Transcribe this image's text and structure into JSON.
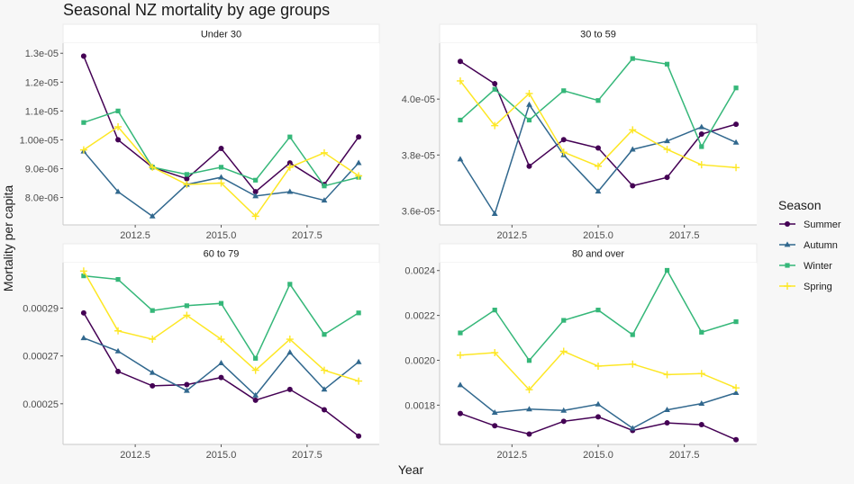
{
  "title": "Seasonal NZ mortality by age groups",
  "xlabel": "Year",
  "ylabel": "Mortality per capita",
  "legend": {
    "title": "Season",
    "items": [
      {
        "name": "Summer",
        "color": "#440154",
        "shape": "circle"
      },
      {
        "name": "Autumn",
        "color": "#31688e",
        "shape": "triangle"
      },
      {
        "name": "Winter",
        "color": "#35b779",
        "shape": "square"
      },
      {
        "name": "Spring",
        "color": "#fde725",
        "shape": "plus"
      }
    ]
  },
  "chart_data": [
    {
      "type": "line",
      "panel": "Under 30",
      "x": [
        2011,
        2012,
        2013,
        2014,
        2015,
        2016,
        2017,
        2018,
        2019
      ],
      "xlim": [
        2010.4,
        2019.6
      ],
      "xticks": [
        2012.5,
        2015.0,
        2017.5
      ],
      "xtick_labels": [
        "2012.5",
        "2015.0",
        "2017.5"
      ],
      "ylim": [
        7.05e-06,
        1.335e-05
      ],
      "yticks": [
        8e-06,
        9e-06,
        1e-05,
        1.1e-05,
        1.2e-05,
        1.3e-05
      ],
      "ytick_labels": [
        "8.0e-06",
        "9.0e-06",
        "1.00e-05",
        "1.1e-05",
        "1.2e-05",
        "1.3e-05"
      ],
      "series": [
        {
          "name": "Summer",
          "values": [
            1.29e-05,
            1e-05,
            9.05e-06,
            8.65e-06,
            9.7e-06,
            8.2e-06,
            9.2e-06,
            8.45e-06,
            1.01e-05
          ]
        },
        {
          "name": "Autumn",
          "values": [
            9.6e-06,
            8.2e-06,
            7.35e-06,
            8.45e-06,
            8.7e-06,
            8.05e-06,
            8.2e-06,
            7.9e-06,
            9.2e-06
          ]
        },
        {
          "name": "Winter",
          "values": [
            1.06e-05,
            1.1e-05,
            9.05e-06,
            8.8e-06,
            9.05e-06,
            8.6e-06,
            1.01e-05,
            8.4e-06,
            8.7e-06
          ]
        },
        {
          "name": "Spring",
          "values": [
            9.65e-06,
            1.045e-05,
            9.05e-06,
            8.45e-06,
            8.5e-06,
            7.35e-06,
            9.05e-06,
            9.55e-06,
            8.75e-06
          ]
        }
      ]
    },
    {
      "type": "line",
      "panel": "30 to 59",
      "x": [
        2011,
        2012,
        2013,
        2014,
        2015,
        2016,
        2017,
        2018,
        2019
      ],
      "xlim": [
        2010.4,
        2019.6
      ],
      "xticks": [
        2012.5,
        2015.0,
        2017.5
      ],
      "xtick_labels": [
        "2012.5",
        "2015.0",
        "2017.5"
      ],
      "ylim": [
        3.55e-05,
        4.2e-05
      ],
      "yticks": [
        3.6e-05,
        3.8e-05,
        4e-05
      ],
      "ytick_labels": [
        "3.6e-05",
        "3.8e-05",
        "4.0e-05"
      ],
      "series": [
        {
          "name": "Summer",
          "values": [
            4.135e-05,
            4.055e-05,
            3.76e-05,
            3.855e-05,
            3.825e-05,
            3.69e-05,
            3.72e-05,
            3.875e-05,
            3.91e-05
          ]
        },
        {
          "name": "Autumn",
          "values": [
            3.785e-05,
            3.59e-05,
            3.98e-05,
            3.8e-05,
            3.67e-05,
            3.82e-05,
            3.85e-05,
            3.9e-05,
            3.845e-05
          ]
        },
        {
          "name": "Winter",
          "values": [
            3.925e-05,
            4.035e-05,
            3.925e-05,
            4.03e-05,
            3.995e-05,
            4.145e-05,
            4.125e-05,
            3.83e-05,
            4.04e-05
          ]
        },
        {
          "name": "Spring",
          "values": [
            4.065e-05,
            3.905e-05,
            4.02e-05,
            3.81e-05,
            3.76e-05,
            3.89e-05,
            3.82e-05,
            3.765e-05,
            3.755e-05
          ]
        }
      ]
    },
    {
      "type": "line",
      "panel": "60 to 79",
      "x": [
        2011,
        2012,
        2013,
        2014,
        2015,
        2016,
        2017,
        2018,
        2019
      ],
      "xlim": [
        2010.4,
        2019.6
      ],
      "xticks": [
        2012.5,
        2015.0,
        2017.5
      ],
      "xtick_labels": [
        "2012.5",
        "2015.0",
        "2017.5"
      ],
      "ylim": [
        0.000233,
        0.000309
      ],
      "yticks": [
        0.00025,
        0.00027,
        0.00029
      ],
      "ytick_labels": [
        "0.00025",
        "0.00027",
        "0.00029"
      ],
      "series": [
        {
          "name": "Summer",
          "values": [
            0.000288,
            0.0002635,
            0.0002575,
            0.000258,
            0.000261,
            0.0002515,
            0.000256,
            0.0002475,
            0.0002365
          ]
        },
        {
          "name": "Autumn",
          "values": [
            0.0002775,
            0.000272,
            0.000263,
            0.0002555,
            0.000267,
            0.0002535,
            0.0002715,
            0.000256,
            0.0002675
          ]
        },
        {
          "name": "Winter",
          "values": [
            0.0003035,
            0.000302,
            0.000289,
            0.000291,
            0.000292,
            0.000269,
            0.0003,
            0.000279,
            0.000288
          ]
        },
        {
          "name": "Spring",
          "values": [
            0.0003055,
            0.0002805,
            0.000277,
            0.000287,
            0.000277,
            0.000264,
            0.000277,
            0.000264,
            0.0002595
          ]
        }
      ]
    },
    {
      "type": "line",
      "panel": "80 and over",
      "x": [
        2011,
        2012,
        2013,
        2014,
        2015,
        2016,
        2017,
        2018,
        2019
      ],
      "xlim": [
        2010.4,
        2019.6
      ],
      "xticks": [
        2012.5,
        2015.0,
        2017.5
      ],
      "xtick_labels": [
        "2012.5",
        "2015.0",
        "2017.5"
      ],
      "ylim": [
        0.001625,
        0.002435
      ],
      "yticks": [
        0.0018,
        0.002,
        0.0022,
        0.0024
      ],
      "ytick_labels": [
        "0.0018",
        "0.0020",
        "0.0022",
        "0.0024"
      ],
      "series": [
        {
          "name": "Summer",
          "values": [
            0.001763,
            0.001708,
            0.001671,
            0.001728,
            0.001748,
            0.001687,
            0.001721,
            0.001713,
            0.001646
          ]
        },
        {
          "name": "Autumn",
          "values": [
            0.00189,
            0.001767,
            0.001782,
            0.001776,
            0.001804,
            0.001697,
            0.001779,
            0.001807,
            0.001855
          ]
        },
        {
          "name": "Winter",
          "values": [
            0.002122,
            0.002224,
            0.001999,
            0.002178,
            0.002224,
            0.002114,
            0.002401,
            0.002125,
            0.002172
          ]
        },
        {
          "name": "Spring",
          "values": [
            0.002023,
            0.002034,
            0.001869,
            0.00204,
            0.001974,
            0.001983,
            0.001936,
            0.001941,
            0.001877
          ]
        }
      ]
    }
  ]
}
